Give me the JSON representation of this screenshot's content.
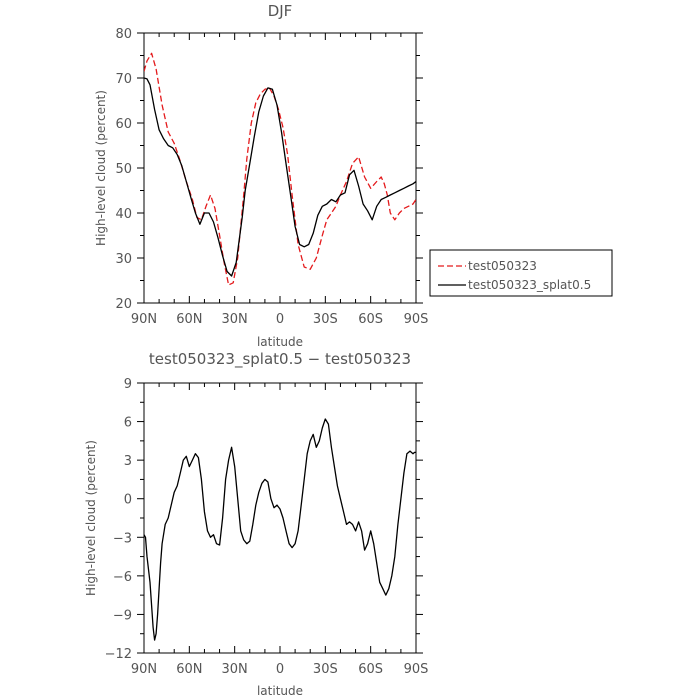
{
  "chart_data": [
    {
      "type": "line",
      "title": "DJF",
      "xlabel": "latitude",
      "ylabel": "High-level cloud (percent)",
      "xlim": [
        90,
        -90
      ],
      "ylim": [
        20,
        80
      ],
      "x_ticks": [
        {
          "value": 90,
          "label": "90N"
        },
        {
          "value": 60,
          "label": "60N"
        },
        {
          "value": 30,
          "label": "30N"
        },
        {
          "value": 0,
          "label": "0"
        },
        {
          "value": -30,
          "label": "30S"
        },
        {
          "value": -60,
          "label": "60S"
        },
        {
          "value": -90,
          "label": "90S"
        }
      ],
      "y_ticks": [
        20,
        30,
        40,
        50,
        60,
        70,
        80
      ],
      "legend_position": "outside-right",
      "series": [
        {
          "name": "test050323",
          "color": "#e41a1c",
          "dash": "dashed",
          "x": [
            90,
            88,
            85,
            82,
            78,
            74,
            70,
            66,
            62,
            58,
            55,
            52,
            49,
            46,
            43,
            40,
            37,
            34,
            31,
            28,
            26,
            24,
            22,
            19,
            16,
            13,
            10,
            7,
            4,
            1,
            -2,
            -5,
            -8,
            -12,
            -16,
            -20,
            -24,
            -28,
            -31,
            -34,
            -37,
            -40,
            -44,
            -48,
            -52,
            -56,
            -60,
            -64,
            -67,
            -69,
            -71,
            -73,
            -76,
            -79,
            -82,
            -85,
            -88,
            -90
          ],
          "y": [
            71.5,
            73.8,
            75.5,
            72.0,
            64.0,
            58.0,
            55.5,
            51.5,
            47.0,
            43.0,
            39.0,
            38.5,
            41.5,
            44.0,
            41.0,
            35.0,
            29.0,
            24.0,
            24.5,
            30.0,
            37.0,
            44.0,
            52.0,
            60.0,
            64.5,
            66.5,
            67.5,
            67.8,
            66.0,
            63.0,
            59.0,
            53.0,
            44.0,
            33.0,
            28.0,
            27.5,
            30.0,
            35.0,
            38.5,
            40.0,
            41.5,
            44.0,
            47.0,
            51.0,
            52.5,
            48.0,
            45.5,
            47.0,
            48.0,
            46.5,
            44.0,
            40.0,
            38.5,
            40.0,
            41.0,
            41.5,
            42.0,
            43.0
          ]
        },
        {
          "name": "test050323_splat0.5",
          "color": "#000000",
          "dash": "solid",
          "x": [
            90,
            88,
            86,
            83,
            80,
            77,
            74,
            71,
            68,
            65,
            62,
            59,
            56,
            53,
            50,
            47,
            44,
            41,
            38,
            35,
            32,
            29,
            27,
            25,
            23,
            20,
            17,
            14,
            11,
            8,
            5,
            2,
            -1,
            -4,
            -7,
            -10,
            -13,
            -16,
            -19,
            -22,
            -25,
            -28,
            -31,
            -34,
            -37,
            -40,
            -43,
            -46,
            -49,
            -52,
            -55,
            -58,
            -61,
            -64,
            -67,
            -70,
            -73,
            -76,
            -79,
            -82,
            -85,
            -88,
            -90
          ],
          "y": [
            70.0,
            69.8,
            68.5,
            63.0,
            58.5,
            56.5,
            55.0,
            54.5,
            53.0,
            50.5,
            47.0,
            43.5,
            40.0,
            37.5,
            40.0,
            40.0,
            38.0,
            34.5,
            30.5,
            27.0,
            26.0,
            29.0,
            34.0,
            39.0,
            45.0,
            51.0,
            57.0,
            62.5,
            66.0,
            67.8,
            67.5,
            64.0,
            58.0,
            51.0,
            44.0,
            37.0,
            33.0,
            32.5,
            33.0,
            35.5,
            39.5,
            41.5,
            42.0,
            43.0,
            42.5,
            44.0,
            44.5,
            48.5,
            49.5,
            46.0,
            42.0,
            40.5,
            38.5,
            41.5,
            43.0,
            43.5,
            44.0,
            44.5,
            45.0,
            45.5,
            46.0,
            46.5,
            47.0
          ]
        }
      ]
    },
    {
      "type": "line",
      "title": "test050323_splat0.5 − test050323",
      "xlabel": "latitude",
      "ylabel": "High-level cloud (percent)",
      "xlim": [
        90,
        -90
      ],
      "ylim": [
        -12,
        9
      ],
      "x_ticks": [
        {
          "value": 90,
          "label": "90N"
        },
        {
          "value": 60,
          "label": "60N"
        },
        {
          "value": 30,
          "label": "30N"
        },
        {
          "value": 0,
          "label": "0"
        },
        {
          "value": -30,
          "label": "30S"
        },
        {
          "value": -60,
          "label": "60S"
        },
        {
          "value": -90,
          "label": "90S"
        }
      ],
      "y_ticks": [
        {
          "value": 9,
          "label": "9"
        },
        {
          "value": 6,
          "label": "6"
        },
        {
          "value": 3,
          "label": "3"
        },
        {
          "value": 0,
          "label": "0"
        },
        {
          "value": -3,
          "label": "−3"
        },
        {
          "value": -6,
          "label": "−6"
        },
        {
          "value": -9,
          "label": "−9"
        },
        {
          "value": -12,
          "label": "−12"
        }
      ],
      "series": [
        {
          "color": "#000000",
          "dash": "solid",
          "x": [
            90,
            89,
            88,
            86,
            84,
            83,
            82,
            81,
            80,
            79,
            78,
            76,
            74,
            72,
            70,
            68,
            66,
            64,
            62,
            60,
            58,
            56,
            54,
            52,
            50,
            48,
            46,
            44,
            42,
            40,
            38,
            36,
            34,
            32,
            30,
            28,
            26,
            24,
            22,
            20,
            18,
            16,
            14,
            12,
            10,
            8,
            6,
            4,
            2,
            0,
            -2,
            -4,
            -6,
            -8,
            -10,
            -12,
            -14,
            -16,
            -18,
            -20,
            -22,
            -24,
            -26,
            -28,
            -30,
            -32,
            -34,
            -36,
            -38,
            -40,
            -42,
            -44,
            -46,
            -48,
            -50,
            -52,
            -54,
            -56,
            -58,
            -60,
            -62,
            -64,
            -66,
            -68,
            -70,
            -72,
            -74,
            -76,
            -78,
            -80,
            -82,
            -84,
            -86,
            -88,
            -89,
            -90
          ],
          "y": [
            -2.8,
            -3.0,
            -4.5,
            -6.5,
            -10.0,
            -11.0,
            -10.5,
            -9.0,
            -7.0,
            -5.0,
            -3.5,
            -2.0,
            -1.5,
            -0.5,
            0.5,
            1.0,
            2.0,
            3.0,
            3.3,
            2.5,
            3.0,
            3.5,
            3.2,
            1.5,
            -1.0,
            -2.5,
            -3.0,
            -2.8,
            -3.5,
            -3.6,
            -1.5,
            1.5,
            3.0,
            4.0,
            2.5,
            0.0,
            -2.5,
            -3.2,
            -3.5,
            -3.3,
            -2.0,
            -0.5,
            0.5,
            1.2,
            1.5,
            1.3,
            0.0,
            -0.7,
            -0.5,
            -0.8,
            -1.5,
            -2.5,
            -3.5,
            -3.8,
            -3.5,
            -2.5,
            -0.5,
            1.5,
            3.5,
            4.5,
            5.0,
            4.0,
            4.5,
            5.5,
            6.2,
            5.8,
            4.0,
            2.5,
            1.0,
            0.0,
            -1.0,
            -2.0,
            -1.8,
            -2.0,
            -2.5,
            -1.8,
            -2.5,
            -4.0,
            -3.5,
            -2.5,
            -3.5,
            -5.0,
            -6.5,
            -7.0,
            -7.5,
            -7.0,
            -6.0,
            -4.5,
            -2.0,
            0.0,
            2.0,
            3.5,
            3.7,
            3.5,
            3.6,
            3.6
          ]
        }
      ]
    }
  ]
}
